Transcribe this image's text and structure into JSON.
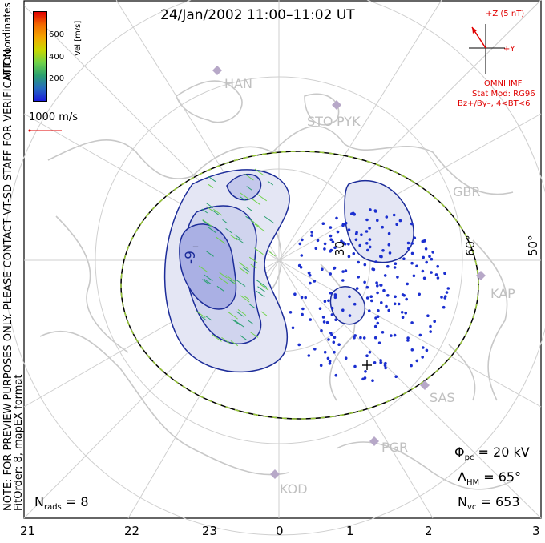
{
  "title": "24/Jan/2002  11:00–11:02 UT",
  "colorbar": {
    "ticks": [
      "600",
      "400",
      "200"
    ],
    "label": "Vel [m/s]",
    "colors": [
      "#e00000",
      "#f26a00",
      "#f3a700",
      "#c9d800",
      "#6fd24a",
      "#2aa070",
      "#276dbf",
      "#1b1bdc"
    ]
  },
  "coord_label": "MLT coordinates",
  "preview_note": "NOTE: FOR PREVIEW PURPOSES ONLY. PLEASE CONTACT VT-SD STAFF FOR VERIFICATION.",
  "fit_note": "FitOrder: 8, mapEX format",
  "speed_legend": "1000 m/s",
  "imf": {
    "z_label": "+Z (5 nT)",
    "y_label": "+Y",
    "source": "OMNI IMF",
    "stat_model": "Stat Mod: RG96",
    "bin": "Bz+/By–, 4<BT<6"
  },
  "stations": [
    "HAN",
    "STO",
    "PYK",
    "GBR",
    "KAP",
    "SAS",
    "PGR",
    "KOD"
  ],
  "contours": {
    "neg_label": "-9",
    "pos_label": "30",
    "min_mark": "–",
    "max_mark": "+"
  },
  "lat_labels": [
    "60°",
    "50°"
  ],
  "stats": {
    "phi_pc_symbol": "Φ",
    "phi_pc_sub": "pc",
    "phi_pc_value": " = 20 kV",
    "lambda_hm_symbol": "Λ",
    "lambda_hm_sub": "HM",
    "lambda_hm_value": " = 65°",
    "n_vc_symbol": "N",
    "n_vc_sub": "vc",
    "n_vc_value": " = 653",
    "n_rads_symbol": "N",
    "n_rads_sub": "rads",
    "n_rads_value": " = 8"
  },
  "mlt_axis": [
    "21",
    "22",
    "23",
    "0",
    "1",
    "2",
    "3"
  ],
  "colors": {
    "map": "#c8c8c8",
    "contour": "#1c2c99",
    "fill_light": "#e4e6f4",
    "fill_dark": "#aab0e4",
    "hmb": "#9ac93a",
    "station": "#b7a8c8"
  }
}
